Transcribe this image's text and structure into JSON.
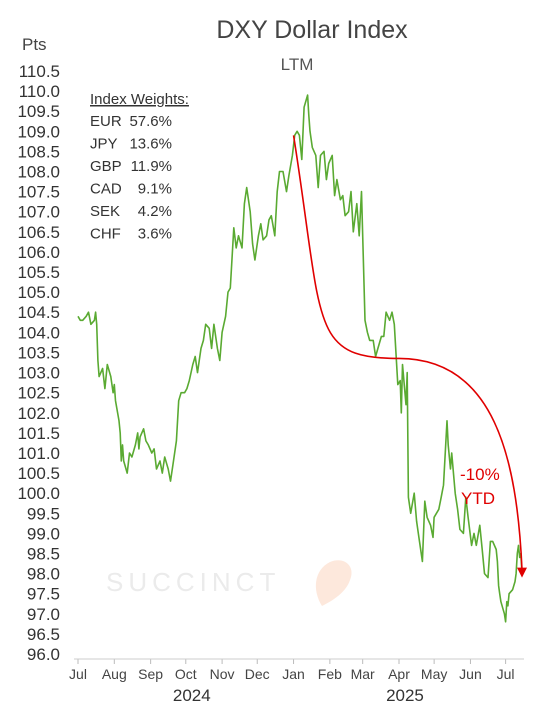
{
  "chart_data": {
    "type": "line",
    "title": "DXY Dollar Index",
    "subtitle": "LTM",
    "ylabel": "Pts",
    "ylim": [
      96.0,
      110.5
    ],
    "ytick_step": 0.5,
    "yticks": [
      "110.5",
      "110.0",
      "109.5",
      "109.0",
      "108.5",
      "108.0",
      "107.5",
      "107.0",
      "106.5",
      "106.0",
      "105.5",
      "105.0",
      "104.5",
      "104.0",
      "103.5",
      "103.0",
      "102.5",
      "102.0",
      "101.5",
      "101.0",
      "100.5",
      "100.0",
      "99.5",
      "99.0",
      "98.5",
      "98.0",
      "97.5",
      "97.0",
      "96.5",
      "96.0"
    ],
    "x_start": "2024-07-01",
    "x_end": "2025-07-15",
    "xticks": [
      {
        "date": "2024-07-01",
        "label": "Jul"
      },
      {
        "date": "2024-08-01",
        "label": "Aug"
      },
      {
        "date": "2024-09-01",
        "label": "Sep"
      },
      {
        "date": "2024-10-01",
        "label": "Oct"
      },
      {
        "date": "2024-11-01",
        "label": "Nov"
      },
      {
        "date": "2024-12-01",
        "label": "Dec"
      },
      {
        "date": "2025-01-01",
        "label": "Jan"
      },
      {
        "date": "2025-02-01",
        "label": "Feb"
      },
      {
        "date": "2025-03-01",
        "label": "Mar"
      },
      {
        "date": "2025-04-01",
        "label": "Apr"
      },
      {
        "date": "2025-05-01",
        "label": "May"
      },
      {
        "date": "2025-06-01",
        "label": "Jun"
      },
      {
        "date": "2025-07-01",
        "label": "Jul"
      }
    ],
    "year_labels": [
      {
        "date": "2024-10-01",
        "label": "2024"
      },
      {
        "date": "2025-04-01",
        "label": "2025"
      }
    ],
    "grid": false,
    "series": [
      {
        "color": "#5aaa32",
        "points": [
          [
            "2024-07-01",
            104.4
          ],
          [
            "2024-07-03",
            104.3
          ],
          [
            "2024-07-05",
            104.3
          ],
          [
            "2024-07-08",
            104.4
          ],
          [
            "2024-07-10",
            104.5
          ],
          [
            "2024-07-12",
            104.2
          ],
          [
            "2024-07-15",
            104.3
          ],
          [
            "2024-07-16",
            104.5
          ],
          [
            "2024-07-17",
            104.2
          ],
          [
            "2024-07-18",
            103.3
          ],
          [
            "2024-07-19",
            102.9
          ],
          [
            "2024-07-22",
            103.1
          ],
          [
            "2024-07-24",
            102.6
          ],
          [
            "2024-07-25",
            102.9
          ],
          [
            "2024-07-26",
            103.2
          ],
          [
            "2024-07-29",
            102.9
          ],
          [
            "2024-07-31",
            102.5
          ],
          [
            "2024-08-01",
            102.7
          ],
          [
            "2024-08-02",
            102.3
          ],
          [
            "2024-08-05",
            101.8
          ],
          [
            "2024-08-06",
            101.5
          ],
          [
            "2024-08-07",
            100.8
          ],
          [
            "2024-08-08",
            101.2
          ],
          [
            "2024-08-09",
            100.8
          ],
          [
            "2024-08-12",
            100.5
          ],
          [
            "2024-08-14",
            101.0
          ],
          [
            "2024-08-16",
            100.9
          ],
          [
            "2024-08-19",
            101.2
          ],
          [
            "2024-08-21",
            101.5
          ],
          [
            "2024-08-22",
            101.1
          ],
          [
            "2024-08-23",
            101.4
          ],
          [
            "2024-08-26",
            101.6
          ],
          [
            "2024-08-28",
            101.3
          ],
          [
            "2024-08-30",
            101.2
          ],
          [
            "2024-09-02",
            101.0
          ],
          [
            "2024-09-04",
            101.1
          ],
          [
            "2024-09-06",
            100.6
          ],
          [
            "2024-09-09",
            100.8
          ],
          [
            "2024-09-11",
            100.5
          ],
          [
            "2024-09-13",
            100.9
          ],
          [
            "2024-09-16",
            100.6
          ],
          [
            "2024-09-18",
            100.3
          ],
          [
            "2024-09-20",
            100.7
          ],
          [
            "2024-09-23",
            101.3
          ],
          [
            "2024-09-25",
            102.3
          ],
          [
            "2024-09-27",
            102.5
          ],
          [
            "2024-09-30",
            102.5
          ],
          [
            "2024-10-02",
            102.6
          ],
          [
            "2024-10-04",
            102.8
          ],
          [
            "2024-10-07",
            103.2
          ],
          [
            "2024-10-09",
            103.4
          ],
          [
            "2024-10-11",
            103.0
          ],
          [
            "2024-10-14",
            103.6
          ],
          [
            "2024-10-16",
            103.8
          ],
          [
            "2024-10-18",
            104.2
          ],
          [
            "2024-10-21",
            104.1
          ],
          [
            "2024-10-23",
            103.6
          ],
          [
            "2024-10-25",
            104.2
          ],
          [
            "2024-10-28",
            103.6
          ],
          [
            "2024-10-30",
            103.3
          ],
          [
            "2024-11-01",
            104.0
          ],
          [
            "2024-11-04",
            104.4
          ],
          [
            "2024-11-06",
            105.0
          ],
          [
            "2024-11-08",
            105.1
          ],
          [
            "2024-11-11",
            106.6
          ],
          [
            "2024-11-13",
            106.1
          ],
          [
            "2024-11-15",
            106.4
          ],
          [
            "2024-11-18",
            106.1
          ],
          [
            "2024-11-20",
            107.2
          ],
          [
            "2024-11-22",
            107.6
          ],
          [
            "2024-11-25",
            107.0
          ],
          [
            "2024-11-27",
            106.2
          ],
          [
            "2024-11-29",
            105.8
          ],
          [
            "2024-12-02",
            106.4
          ],
          [
            "2024-12-04",
            106.7
          ],
          [
            "2024-12-06",
            106.3
          ],
          [
            "2024-12-09",
            106.4
          ],
          [
            "2024-12-11",
            106.8
          ],
          [
            "2024-12-13",
            106.9
          ],
          [
            "2024-12-16",
            106.4
          ],
          [
            "2024-12-18",
            107.5
          ],
          [
            "2024-12-20",
            108.0
          ],
          [
            "2024-12-23",
            108.0
          ],
          [
            "2024-12-26",
            107.5
          ],
          [
            "2024-12-28",
            107.9
          ],
          [
            "2024-12-31",
            108.4
          ],
          [
            "2025-01-02",
            108.9
          ],
          [
            "2025-01-04",
            109.0
          ],
          [
            "2025-01-06",
            108.9
          ],
          [
            "2025-01-08",
            108.3
          ],
          [
            "2025-01-10",
            109.6
          ],
          [
            "2025-01-13",
            109.9
          ],
          [
            "2025-01-14",
            109.4
          ],
          [
            "2025-01-15",
            109.0
          ],
          [
            "2025-01-17",
            108.6
          ],
          [
            "2025-01-20",
            108.4
          ],
          [
            "2025-01-21",
            108.0
          ],
          [
            "2025-01-22",
            107.6
          ],
          [
            "2025-01-24",
            108.4
          ],
          [
            "2025-01-27",
            108.5
          ],
          [
            "2025-01-29",
            107.8
          ],
          [
            "2025-01-31",
            108.2
          ],
          [
            "2025-02-03",
            108.4
          ],
          [
            "2025-02-05",
            107.4
          ],
          [
            "2025-02-07",
            107.8
          ],
          [
            "2025-02-10",
            107.3
          ],
          [
            "2025-02-12",
            107.4
          ],
          [
            "2025-02-14",
            106.9
          ],
          [
            "2025-02-17",
            107.0
          ],
          [
            "2025-02-19",
            107.5
          ],
          [
            "2025-02-21",
            106.5
          ],
          [
            "2025-02-24",
            107.2
          ],
          [
            "2025-02-26",
            106.4
          ],
          [
            "2025-02-28",
            107.5
          ],
          [
            "2025-03-03",
            104.3
          ],
          [
            "2025-03-05",
            104.0
          ],
          [
            "2025-03-07",
            103.8
          ],
          [
            "2025-03-10",
            103.8
          ],
          [
            "2025-03-12",
            103.4
          ],
          [
            "2025-03-14",
            103.6
          ],
          [
            "2025-03-17",
            103.9
          ],
          [
            "2025-03-19",
            103.9
          ],
          [
            "2025-03-21",
            104.5
          ],
          [
            "2025-03-24",
            104.3
          ],
          [
            "2025-03-26",
            104.5
          ],
          [
            "2025-03-28",
            104.2
          ],
          [
            "2025-03-31",
            102.7
          ],
          [
            "2025-04-02",
            102.8
          ],
          [
            "2025-04-03",
            102.0
          ],
          [
            "2025-04-04",
            103.2
          ],
          [
            "2025-04-07",
            102.2
          ],
          [
            "2025-04-08",
            103.0
          ],
          [
            "2025-04-09",
            99.9
          ],
          [
            "2025-04-11",
            99.5
          ],
          [
            "2025-04-14",
            100.0
          ],
          [
            "2025-04-16",
            99.3
          ],
          [
            "2025-04-18",
            98.9
          ],
          [
            "2025-04-21",
            98.3
          ],
          [
            "2025-04-23",
            99.8
          ],
          [
            "2025-04-25",
            99.4
          ],
          [
            "2025-04-28",
            99.2
          ],
          [
            "2025-04-30",
            98.9
          ],
          [
            "2025-05-01",
            99.4
          ],
          [
            "2025-05-05",
            99.6
          ],
          [
            "2025-05-07",
            99.9
          ],
          [
            "2025-05-09",
            100.2
          ],
          [
            "2025-05-12",
            101.8
          ],
          [
            "2025-05-13",
            101.2
          ],
          [
            "2025-05-15",
            100.6
          ],
          [
            "2025-05-16",
            101.0
          ],
          [
            "2025-05-19",
            100.0
          ],
          [
            "2025-05-21",
            99.6
          ],
          [
            "2025-05-23",
            99.1
          ],
          [
            "2025-05-26",
            99.0
          ],
          [
            "2025-05-28",
            99.9
          ],
          [
            "2025-05-30",
            99.4
          ],
          [
            "2025-06-02",
            98.7
          ],
          [
            "2025-06-04",
            99.0
          ],
          [
            "2025-06-06",
            98.7
          ],
          [
            "2025-06-09",
            99.2
          ],
          [
            "2025-06-11",
            98.6
          ],
          [
            "2025-06-13",
            98.0
          ],
          [
            "2025-06-16",
            97.9
          ],
          [
            "2025-06-18",
            98.8
          ],
          [
            "2025-06-20",
            98.8
          ],
          [
            "2025-06-23",
            98.6
          ],
          [
            "2025-06-24",
            98.3
          ],
          [
            "2025-06-25",
            97.7
          ],
          [
            "2025-06-26",
            97.5
          ],
          [
            "2025-06-27",
            97.3
          ],
          [
            "2025-06-30",
            97.0
          ],
          [
            "2025-07-01",
            96.8
          ],
          [
            "2025-07-02",
            97.3
          ],
          [
            "2025-07-03",
            97.2
          ],
          [
            "2025-07-04",
            97.5
          ],
          [
            "2025-07-07",
            97.6
          ],
          [
            "2025-07-09",
            97.8
          ],
          [
            "2025-07-10",
            98.0
          ],
          [
            "2025-07-11",
            98.5
          ],
          [
            "2025-07-12",
            98.7
          ],
          [
            "2025-07-13",
            98.4
          ],
          [
            "2025-07-14",
            98.5
          ],
          [
            "2025-07-15",
            98.0
          ]
        ]
      }
    ],
    "index_weights": {
      "heading": "Index Weights:",
      "rows": [
        {
          "currency": "EUR",
          "weight": "57.6%"
        },
        {
          "currency": "JPY",
          "weight": "13.6%"
        },
        {
          "currency": "GBP",
          "weight": "11.9%"
        },
        {
          "currency": "CAD",
          "weight": "9.1%"
        },
        {
          "currency": "SEK",
          "weight": "4.2%"
        },
        {
          "currency": "CHF",
          "weight": "3.6%"
        }
      ]
    },
    "annotation": {
      "text_line1": "-10%",
      "text_line2": "YTD",
      "color": "#e00000",
      "arrow_from": [
        "2025-01-01",
        108.9
      ],
      "arrow_via": [
        "2025-04-01",
        103.35
      ],
      "arrow_to": [
        "2025-07-15",
        97.9
      ]
    },
    "watermark": "SUCCINCT"
  }
}
